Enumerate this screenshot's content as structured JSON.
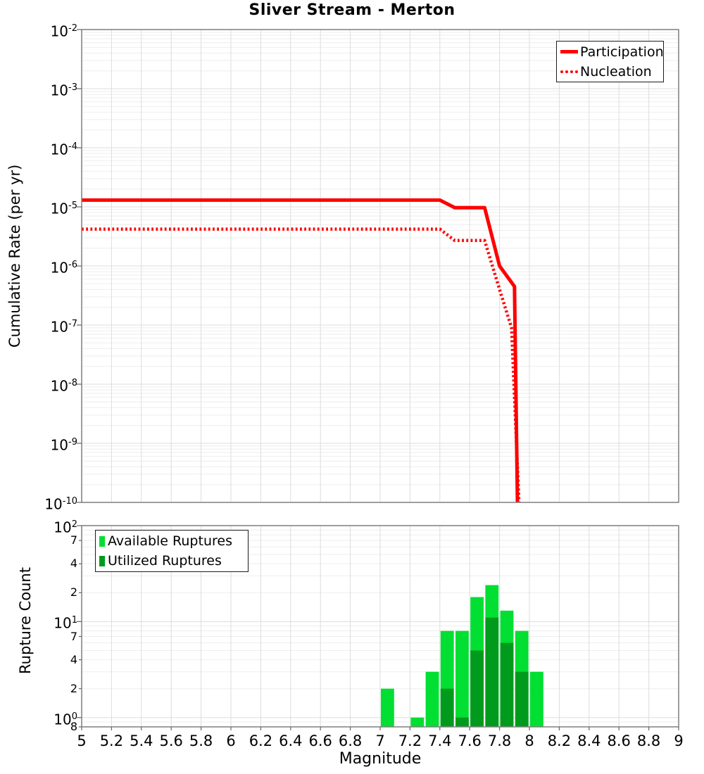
{
  "title": "Sliver Stream - Merton",
  "colors": {
    "line_red": "#ff0000",
    "available_green": "#00df32",
    "utilized_green": "#009b1c",
    "grid_minor": "#eeeeee",
    "grid_major": "#dddddd",
    "axis_border": "#7f7f7f",
    "tick_mark": "#666666",
    "text": "#000000"
  },
  "chart_data": [
    {
      "id": "participation-nucleation",
      "type": "line",
      "title": "Sliver Stream - Merton",
      "xlabel": "",
      "ylabel": "Cumulative Rate (per yr)",
      "xlim": [
        5,
        9
      ],
      "ylim": [
        1e-10,
        0.01
      ],
      "ylim_exponents": [
        -2,
        -10
      ],
      "y_scale": "log",
      "grid": true,
      "legend_position": "top-right",
      "y_tick_exponents": [
        -2,
        -3,
        -4,
        -5,
        -6,
        -7,
        -8,
        -9,
        -10
      ],
      "legend": [
        {
          "label": "Participation",
          "style": "solid",
          "color": "#ff0000"
        },
        {
          "label": "Nucleation",
          "style": "dotted",
          "color": "#ff0000"
        }
      ],
      "series": [
        {
          "name": "Participation",
          "style": "solid",
          "color": "#ff0000",
          "width": 5,
          "points": [
            [
              5.0,
              1.3e-05
            ],
            [
              7.4,
              1.3e-05
            ],
            [
              7.5,
              9.7e-06
            ],
            [
              7.7,
              9.7e-06
            ],
            [
              7.8,
              1e-06
            ],
            [
              7.9,
              4.5e-07
            ],
            [
              7.92,
              1e-10
            ]
          ]
        },
        {
          "name": "Nucleation",
          "style": "dotted",
          "color": "#ff0000",
          "width": 4.5,
          "points": [
            [
              5.0,
              4.2e-06
            ],
            [
              7.4,
              4.2e-06
            ],
            [
              7.5,
              2.7e-06
            ],
            [
              7.7,
              2.7e-06
            ],
            [
              7.8,
              4e-07
            ],
            [
              7.88,
              9e-08
            ],
            [
              7.93,
              1e-10
            ]
          ]
        }
      ]
    },
    {
      "id": "rupture-count",
      "type": "bar",
      "xlabel": "Magnitude",
      "ylabel": "Rupture Count",
      "xlim": [
        5,
        9
      ],
      "ylim": [
        0.8,
        100
      ],
      "y_scale": "log",
      "grid": true,
      "legend_position": "top-left",
      "bin_width": 0.1,
      "y_major_exponents": [
        2,
        1,
        0
      ],
      "y_minor_ticks": [
        {
          "value": 70,
          "label": "7"
        },
        {
          "value": 40,
          "label": "4"
        },
        {
          "value": 20,
          "label": "2"
        },
        {
          "value": 7,
          "label": "7"
        },
        {
          "value": 4,
          "label": "4"
        },
        {
          "value": 2,
          "label": "2"
        },
        {
          "value": 0.8,
          "label": "8"
        }
      ],
      "x_ticks": [
        {
          "value": 5,
          "label": "5"
        },
        {
          "value": 5.2,
          "label": "5.2"
        },
        {
          "value": 5.4,
          "label": "5.4"
        },
        {
          "value": 5.6,
          "label": "5.6"
        },
        {
          "value": 5.8,
          "label": "5.8"
        },
        {
          "value": 6,
          "label": "6"
        },
        {
          "value": 6.2,
          "label": "6.2"
        },
        {
          "value": 6.4,
          "label": "6.4"
        },
        {
          "value": 6.6,
          "label": "6.6"
        },
        {
          "value": 6.8,
          "label": "6.8"
        },
        {
          "value": 7,
          "label": "7"
        },
        {
          "value": 7.2,
          "label": "7.2"
        },
        {
          "value": 7.4,
          "label": "7.4"
        },
        {
          "value": 7.6,
          "label": "7.6"
        },
        {
          "value": 7.8,
          "label": "7.8"
        },
        {
          "value": 8,
          "label": "8"
        },
        {
          "value": 8.2,
          "label": "8.2"
        },
        {
          "value": 8.4,
          "label": "8.4"
        },
        {
          "value": 8.6,
          "label": "8.6"
        },
        {
          "value": 8.8,
          "label": "8.8"
        },
        {
          "value": 9,
          "label": "9"
        }
      ],
      "legend": [
        {
          "label": "Available Ruptures",
          "color": "#00df32"
        },
        {
          "label": "Utilized Ruptures",
          "color": "#009b1c"
        }
      ],
      "series": [
        {
          "name": "Available Ruptures",
          "values": [
            2,
            0,
            1,
            3,
            8,
            8,
            18,
            24,
            13,
            8,
            3
          ]
        },
        {
          "name": "Utilized Ruptures",
          "values": [
            0,
            0,
            0,
            0,
            2,
            1,
            5,
            11,
            6,
            3,
            0
          ]
        }
      ],
      "bars": [
        {
          "mag": 7.0,
          "available": 2,
          "utilized": 0
        },
        {
          "mag": 7.2,
          "available": 1,
          "utilized": 0
        },
        {
          "mag": 7.3,
          "available": 3,
          "utilized": 0
        },
        {
          "mag": 7.4,
          "available": 8,
          "utilized": 2
        },
        {
          "mag": 7.5,
          "available": 8,
          "utilized": 1
        },
        {
          "mag": 7.6,
          "available": 18,
          "utilized": 5
        },
        {
          "mag": 7.7,
          "available": 24,
          "utilized": 11
        },
        {
          "mag": 7.8,
          "available": 13,
          "utilized": 6
        },
        {
          "mag": 7.9,
          "available": 8,
          "utilized": 3
        },
        {
          "mag": 8.0,
          "available": 3,
          "utilized": 0
        }
      ]
    }
  ]
}
